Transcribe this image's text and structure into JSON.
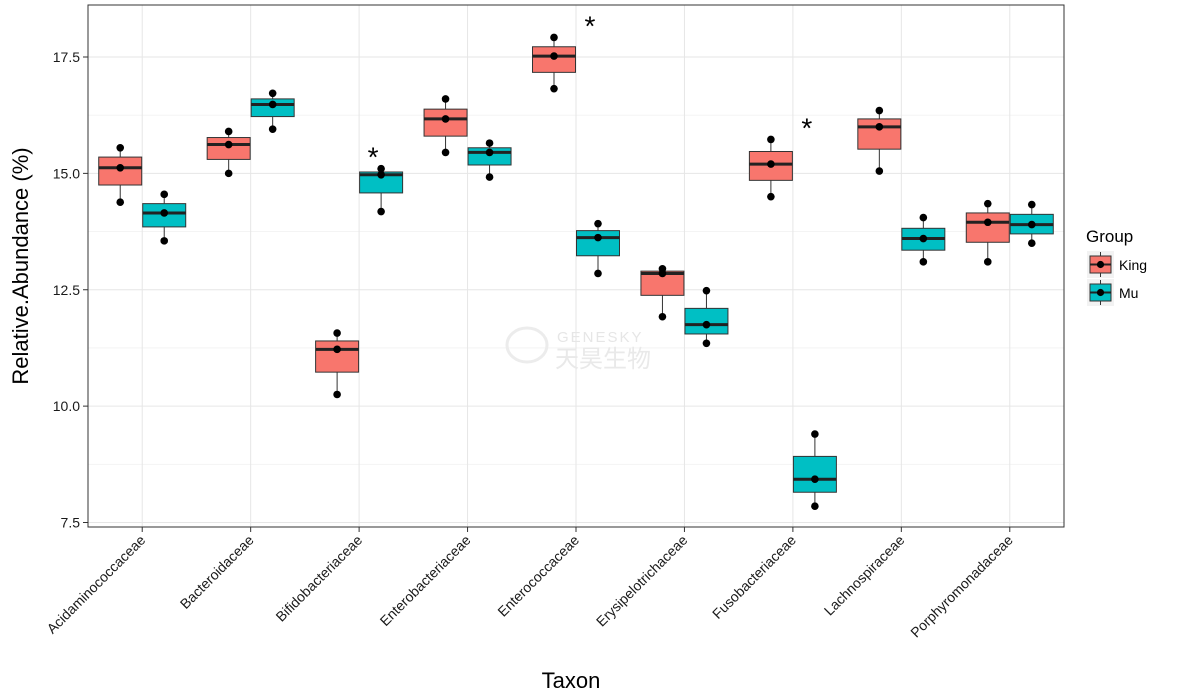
{
  "chart_data": {
    "type": "box",
    "xlabel": "Taxon",
    "ylabel": "Relative.Abundance (%)",
    "ylim": [
      7.3,
      18.5
    ],
    "yticks": [
      7.5,
      10.0,
      12.5,
      15.0,
      17.5
    ],
    "ytick_labels": [
      "7.5",
      "10.0",
      "12.5",
      "15.0",
      "17.5"
    ],
    "grid": true,
    "legend": {
      "title": "Group",
      "position": "right",
      "items": [
        {
          "label": "King",
          "color": "#F8766D"
        },
        {
          "label": "Mu",
          "color": "#00BFC4"
        }
      ]
    },
    "watermark": [
      "GENESKY",
      "天昊生物"
    ],
    "categories": [
      "Acidaminococcaceae",
      "Bacteroidaceae",
      "Bifidobacteriaceae",
      "Enterobacteriaceae",
      "Enterococcaceae",
      "Erysipelotrichaceae",
      "Fusobacteriaceae",
      "Lachnospiraceae",
      "Porphyromonadaceae"
    ],
    "significance": [
      "",
      "",
      "*",
      "",
      "*",
      "",
      "*",
      "",
      ""
    ],
    "series": [
      {
        "name": "King",
        "color": "#F8766D",
        "boxes": [
          {
            "min": 14.38,
            "q1": 14.75,
            "median": 15.12,
            "q3": 15.35,
            "max": 15.55,
            "points": [
              14.38,
              15.12,
              15.55
            ]
          },
          {
            "min": 15.0,
            "q1": 15.3,
            "median": 15.62,
            "q3": 15.77,
            "max": 15.9,
            "points": [
              15.0,
              15.62,
              15.9
            ]
          },
          {
            "min": 10.25,
            "q1": 10.73,
            "median": 11.22,
            "q3": 11.4,
            "max": 11.57,
            "points": [
              10.25,
              11.22,
              11.57
            ]
          },
          {
            "min": 15.45,
            "q1": 15.8,
            "median": 16.17,
            "q3": 16.38,
            "max": 16.6,
            "points": [
              15.45,
              16.17,
              16.6
            ]
          },
          {
            "min": 16.82,
            "q1": 17.17,
            "median": 17.52,
            "q3": 17.72,
            "max": 17.92,
            "points": [
              16.82,
              17.52,
              17.92
            ]
          },
          {
            "min": 11.92,
            "q1": 12.38,
            "median": 12.85,
            "q3": 12.9,
            "max": 12.95,
            "points": [
              11.92,
              12.85,
              12.95
            ]
          },
          {
            "min": 14.5,
            "q1": 14.85,
            "median": 15.2,
            "q3": 15.47,
            "max": 15.73,
            "points": [
              14.5,
              15.2,
              15.73
            ]
          },
          {
            "min": 15.05,
            "q1": 15.52,
            "median": 16.0,
            "q3": 16.17,
            "max": 16.35,
            "points": [
              15.05,
              16.0,
              16.35
            ]
          },
          {
            "min": 13.1,
            "q1": 13.52,
            "median": 13.95,
            "q3": 14.15,
            "max": 14.35,
            "points": [
              13.1,
              13.95,
              14.35
            ]
          }
        ]
      },
      {
        "name": "Mu",
        "color": "#00BFC4",
        "boxes": [
          {
            "min": 13.55,
            "q1": 13.85,
            "median": 14.15,
            "q3": 14.35,
            "max": 14.55,
            "points": [
              13.55,
              14.15,
              14.55
            ]
          },
          {
            "min": 15.95,
            "q1": 16.22,
            "median": 16.48,
            "q3": 16.6,
            "max": 16.72,
            "points": [
              15.95,
              16.48,
              16.72
            ]
          },
          {
            "min": 14.18,
            "q1": 14.58,
            "median": 14.97,
            "q3": 15.03,
            "max": 15.1,
            "points": [
              14.18,
              14.97,
              15.1
            ]
          },
          {
            "min": 14.92,
            "q1": 15.18,
            "median": 15.45,
            "q3": 15.55,
            "max": 15.65,
            "points": [
              14.92,
              15.45,
              15.65
            ]
          },
          {
            "min": 12.85,
            "q1": 13.23,
            "median": 13.62,
            "q3": 13.77,
            "max": 13.92,
            "points": [
              12.85,
              13.62,
              13.92
            ]
          },
          {
            "min": 11.35,
            "q1": 11.55,
            "median": 11.75,
            "q3": 12.1,
            "max": 12.48,
            "points": [
              11.35,
              11.75,
              12.48
            ]
          },
          {
            "min": 7.85,
            "q1": 8.15,
            "median": 8.43,
            "q3": 8.92,
            "max": 9.4,
            "points": [
              7.85,
              8.43,
              9.4
            ]
          },
          {
            "min": 13.1,
            "q1": 13.35,
            "median": 13.6,
            "q3": 13.82,
            "max": 14.05,
            "points": [
              13.1,
              13.6,
              14.05
            ]
          },
          {
            "min": 13.5,
            "q1": 13.7,
            "median": 13.9,
            "q3": 14.12,
            "max": 14.33,
            "points": [
              13.5,
              13.9,
              14.33
            ]
          }
        ]
      }
    ]
  }
}
